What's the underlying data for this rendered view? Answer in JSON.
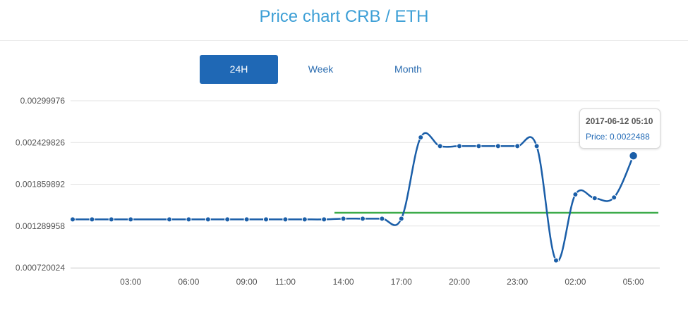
{
  "header": {
    "title": "Price chart CRB / ETH"
  },
  "tabs": [
    {
      "label": "24H",
      "active": true
    },
    {
      "label": "Week",
      "active": false
    },
    {
      "label": "Month",
      "active": false
    }
  ],
  "tooltip": {
    "date": "2017-06-12 05:10",
    "price_label": "Price:",
    "price_value": "0.0022488"
  },
  "colors": {
    "line": "#1a5ea8",
    "reference_line": "#3cab4a",
    "accent": "#1f68b5",
    "title": "#3d9fd6"
  },
  "chart_data": {
    "type": "line",
    "title": "Price chart CRB / ETH",
    "xlabel": "",
    "ylabel": "",
    "y_ticks": [
      "0.00299976",
      "0.002429826",
      "0.001859892",
      "0.001289958",
      "0.000720024"
    ],
    "ylim": [
      0.000720024,
      0.00299976
    ],
    "x_ticks": [
      "03:00",
      "06:00",
      "09:00",
      "11:00",
      "14:00",
      "17:00",
      "20:00",
      "23:00",
      "02:00",
      "05:00"
    ],
    "grid": true,
    "series": [
      {
        "values": [
          0.00138,
          0.00138,
          0.00138,
          0.00138,
          0.00138,
          0.00138,
          0.00138,
          0.00138,
          0.00138,
          0.00138,
          0.00138,
          0.00138,
          0.00138,
          0.00139,
          0.00139,
          0.00139,
          0.00139,
          0.0025,
          0.00238,
          0.00238,
          0.00238,
          0.00238,
          0.00238,
          0.00238,
          0.00082,
          0.00172,
          0.00167,
          0.00168,
          0.0022488
        ],
        "x_index": [
          0,
          1,
          2,
          3,
          5,
          6,
          7,
          8,
          9,
          10,
          11,
          12,
          13,
          14,
          15,
          16,
          17,
          18,
          19,
          20,
          21,
          22,
          23,
          24,
          25,
          26,
          27,
          28,
          29
        ]
      }
    ],
    "reference_line": {
      "value": 0.00147
    }
  }
}
